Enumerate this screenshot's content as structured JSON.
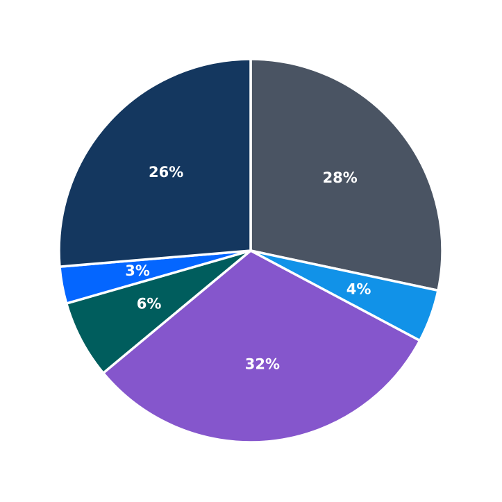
{
  "chart_data": {
    "type": "pie",
    "title": "",
    "start_angle_deg": 0,
    "direction": "clockwise",
    "slices": [
      {
        "label": "28%",
        "value": 28,
        "color": "#4a5463",
        "start": 0,
        "end": 102
      },
      {
        "label": "4%",
        "value": 4,
        "color": "#1192e8",
        "start": 102,
        "end": 118
      },
      {
        "label": "32%",
        "value": 32,
        "color": "#8556cc",
        "start": 118,
        "end": 230.3
      },
      {
        "label": "6%",
        "value": 6,
        "color": "#005d5d",
        "start": 230.3,
        "end": 254
      },
      {
        "label": "3%",
        "value": 3,
        "color": "#0466ff",
        "start": 254,
        "end": 265.2
      },
      {
        "label": "26%",
        "value": 26,
        "color": "#14375f",
        "start": 265.2,
        "end": 360
      }
    ],
    "legend": null
  }
}
